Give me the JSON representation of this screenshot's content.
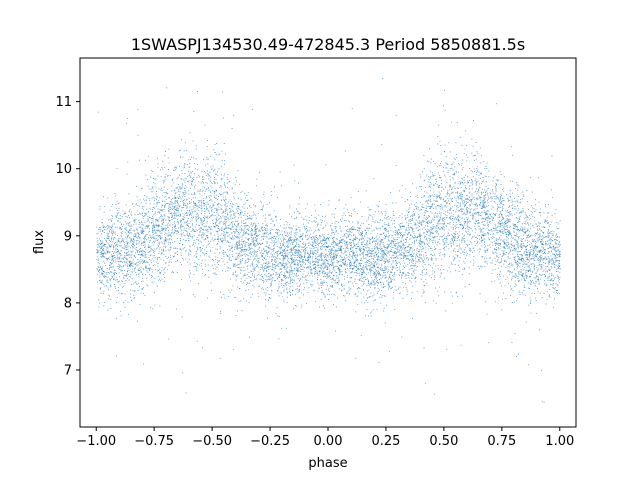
{
  "chart_data": {
    "type": "scatter",
    "title": "1SWASPJ134530.49-472845.3 Period 5850881.5s",
    "xlabel": "phase",
    "ylabel": "flux",
    "xlim": [
      -1.07,
      1.07
    ],
    "ylim": [
      6.15,
      11.65
    ],
    "xticks": [
      -1.0,
      -0.75,
      -0.5,
      -0.25,
      0.0,
      0.25,
      0.5,
      0.75,
      1.0
    ],
    "xtick_labels": [
      "−1.00",
      "−0.75",
      "−0.50",
      "−0.25",
      "0.00",
      "0.25",
      "0.50",
      "0.75",
      "1.00"
    ],
    "yticks": [
      7,
      8,
      9,
      10,
      11
    ],
    "ytick_labels": [
      "7",
      "8",
      "9",
      "10",
      "11"
    ],
    "grid": false,
    "legend": "none",
    "series": [
      {
        "marker_color": "#1f77b4",
        "x_range": [
          -1.0,
          1.0
        ],
        "symmetric_phase": true,
        "profile": [
          {
            "x": 0.0,
            "y_mean": 8.7,
            "y_std": 0.3
          },
          {
            "x": 0.1,
            "y_mean": 8.75,
            "y_std": 0.3
          },
          {
            "x": 0.2,
            "y_mean": 8.65,
            "y_std": 0.32
          },
          {
            "x": 0.3,
            "y_mean": 8.8,
            "y_std": 0.32
          },
          {
            "x": 0.4,
            "y_mean": 9.0,
            "y_std": 0.38
          },
          {
            "x": 0.45,
            "y_mean": 9.25,
            "y_std": 0.45
          },
          {
            "x": 0.55,
            "y_mean": 9.3,
            "y_std": 0.5
          },
          {
            "x": 0.65,
            "y_mean": 9.4,
            "y_std": 0.4
          },
          {
            "x": 0.75,
            "y_mean": 9.0,
            "y_std": 0.4
          },
          {
            "x": 0.85,
            "y_mean": 8.8,
            "y_std": 0.35
          },
          {
            "x": 1.0,
            "y_mean": 8.7,
            "y_std": 0.3
          }
        ]
      }
    ]
  }
}
